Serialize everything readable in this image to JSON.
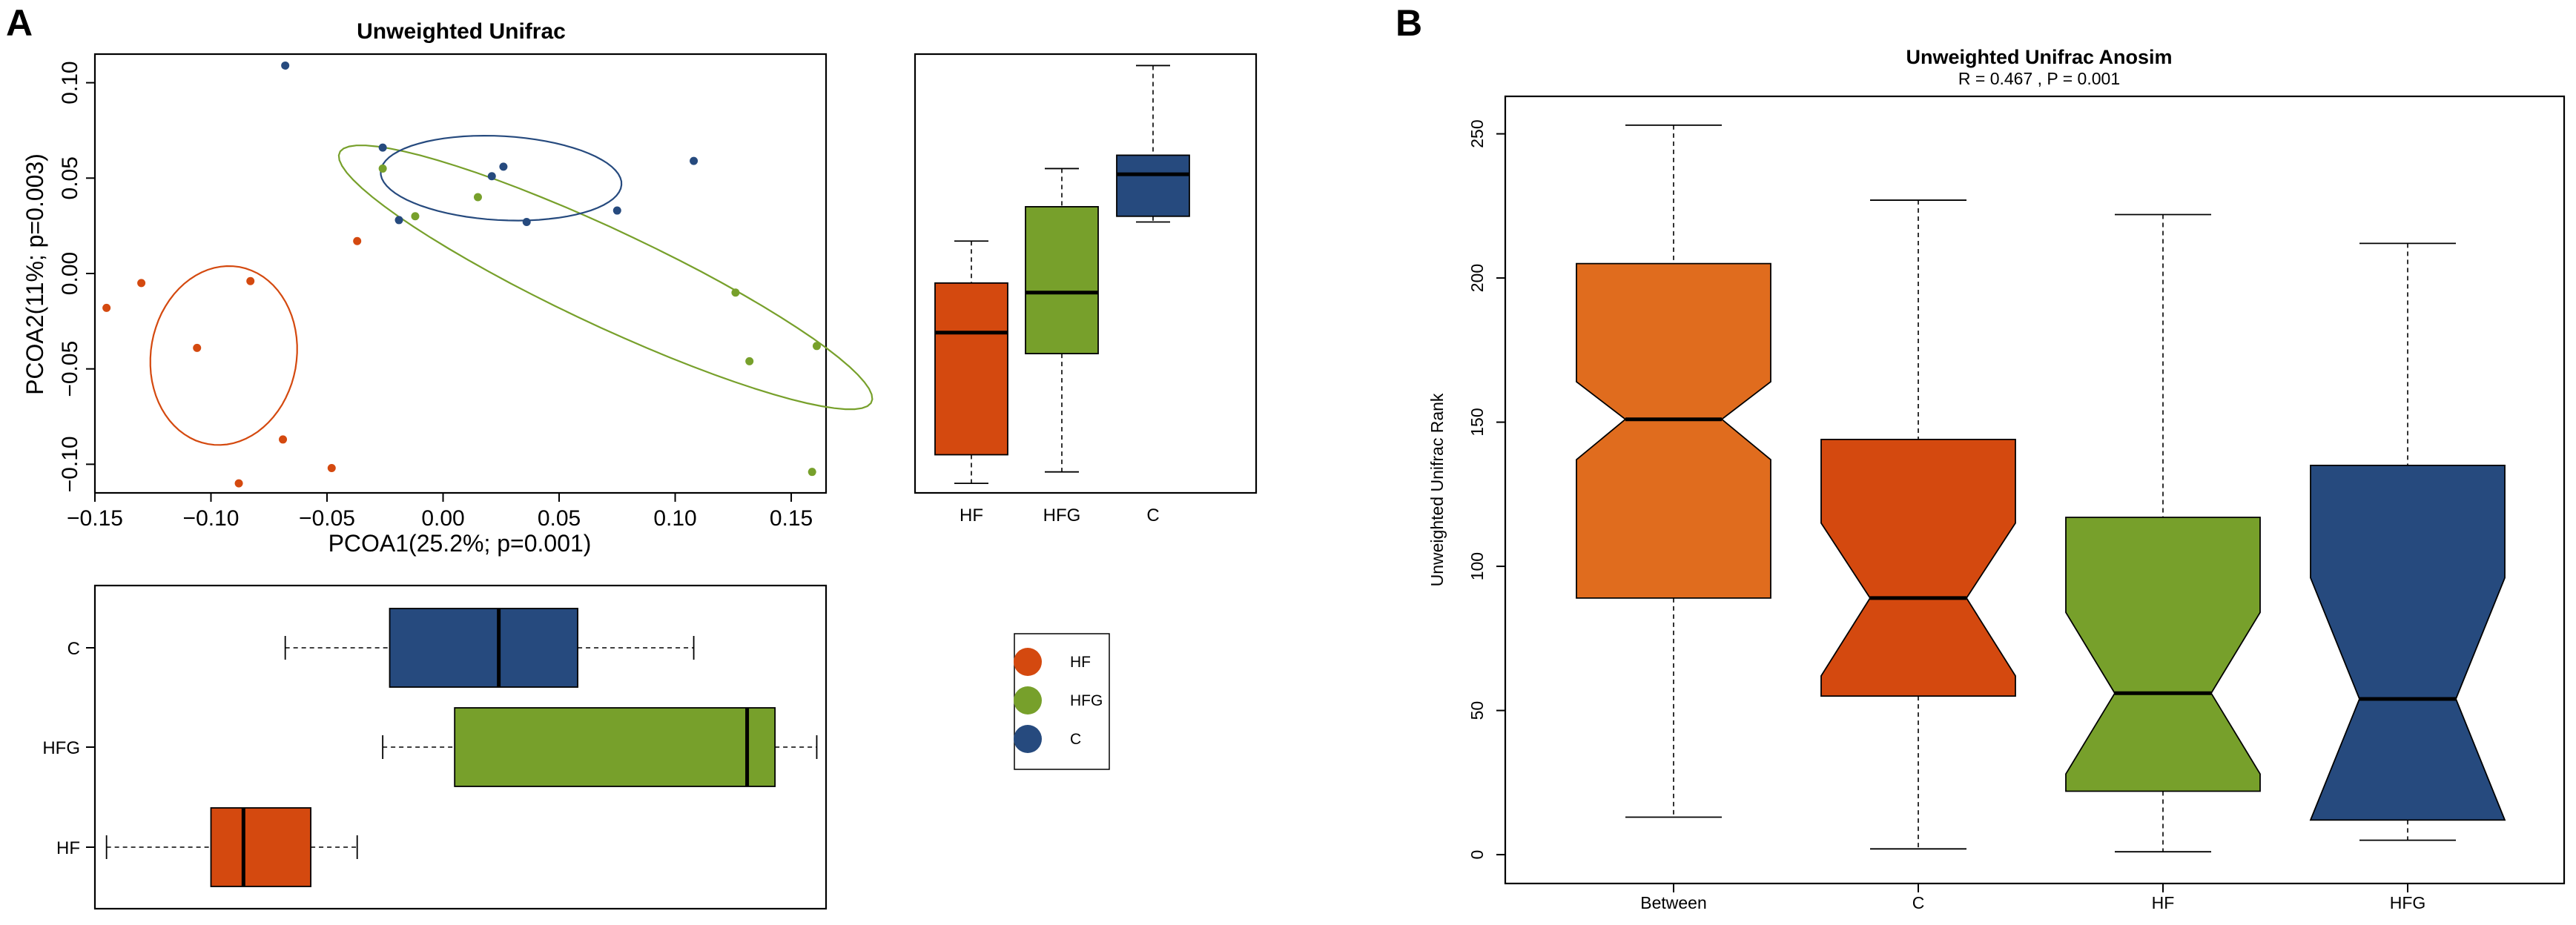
{
  "colors": {
    "HF": "#d4490f",
    "HFG": "#77a02b",
    "C": "#264a7e",
    "Between": "#e06c1e"
  },
  "panels": {
    "A": {
      "label": "A",
      "title": "Unweighted Unifrac",
      "legend": [
        {
          "label": "HF",
          "color_key": "HF"
        },
        {
          "label": "HFG",
          "color_key": "HFG"
        },
        {
          "label": "C",
          "color_key": "C"
        }
      ]
    },
    "B": {
      "label": "B",
      "title": "Unweighted Unifrac Anosim",
      "subtitle": "R = 0.467 ,  P = 0.001"
    }
  },
  "chart_data": [
    {
      "id": "pcoa",
      "type": "scatter",
      "title": "Unweighted Unifrac",
      "xlabel": "PCOA1(25.2%; p=0.001)",
      "ylabel": "PCOA2(11%; p=0.003)",
      "xlim": [
        -0.15,
        0.165
      ],
      "ylim": [
        -0.115,
        0.115
      ],
      "xticks": [
        -0.15,
        -0.1,
        -0.05,
        0.0,
        0.05,
        0.1,
        0.15
      ],
      "xtick_labels": [
        "−0.15",
        "−0.10",
        "−0.05",
        "0.00",
        "0.05",
        "0.10",
        "0.15"
      ],
      "yticks": [
        -0.1,
        -0.05,
        0.0,
        0.05,
        0.1
      ],
      "ytick_labels": [
        "−0.10",
        "−0.05",
        "0.00",
        "0.05",
        "0.10"
      ],
      "series": [
        {
          "name": "HF",
          "color_key": "HF",
          "points": [
            [
              -0.145,
              -0.018
            ],
            [
              -0.13,
              -0.005
            ],
            [
              -0.106,
              -0.039
            ],
            [
              -0.083,
              -0.004
            ],
            [
              -0.069,
              -0.087
            ],
            [
              -0.088,
              -0.11
            ],
            [
              -0.048,
              -0.102
            ],
            [
              -0.037,
              0.017
            ]
          ],
          "ellipse": {
            "cx": -0.0945,
            "cy": -0.043,
            "rx": 0.0315,
            "ry": 0.047,
            "angle_deg": -5
          }
        },
        {
          "name": "HFG",
          "color_key": "HFG",
          "points": [
            [
              -0.026,
              0.055
            ],
            [
              -0.012,
              0.03
            ],
            [
              0.015,
              0.04
            ],
            [
              0.126,
              -0.01
            ],
            [
              0.132,
              -0.046
            ],
            [
              0.161,
              -0.038
            ],
            [
              0.159,
              -0.104
            ]
          ],
          "ellipse": {
            "cx": 0.07,
            "cy": -0.002,
            "rx": 0.132,
            "ry": 0.024,
            "angle_deg": -30
          }
        },
        {
          "name": "C",
          "color_key": "C",
          "points": [
            [
              -0.068,
              0.109
            ],
            [
              -0.026,
              0.066
            ],
            [
              -0.019,
              0.028
            ],
            [
              0.021,
              0.051
            ],
            [
              0.026,
              0.056
            ],
            [
              0.036,
              0.027
            ],
            [
              0.075,
              0.033
            ],
            [
              0.108,
              0.059
            ]
          ],
          "ellipse": {
            "cx": 0.025,
            "cy": 0.05,
            "rx": 0.052,
            "ry": 0.022,
            "angle_deg": -4
          }
        }
      ]
    },
    {
      "id": "pc2-box",
      "type": "box",
      "orientation": "vertical",
      "axis": "PCOA2",
      "categories": [
        "HF",
        "HFG",
        "C"
      ],
      "ylim": [
        -0.115,
        0.115
      ],
      "boxes": [
        {
          "name": "HF",
          "color_key": "HF",
          "min": -0.11,
          "q1": -0.095,
          "median": -0.031,
          "q3": -0.005,
          "max": 0.017
        },
        {
          "name": "HFG",
          "color_key": "HFG",
          "min": -0.104,
          "q1": -0.042,
          "median": -0.01,
          "q3": 0.035,
          "max": 0.055
        },
        {
          "name": "C",
          "color_key": "C",
          "min": 0.027,
          "q1": 0.03,
          "median": 0.052,
          "q3": 0.062,
          "max": 0.109
        }
      ]
    },
    {
      "id": "pc1-box",
      "type": "box",
      "orientation": "horizontal",
      "axis": "PCOA1",
      "categories": [
        "HF",
        "HFG",
        "C"
      ],
      "xlim": [
        -0.15,
        0.165
      ],
      "boxes": [
        {
          "name": "HF",
          "color_key": "HF",
          "min": -0.145,
          "q1": -0.1,
          "median": -0.086,
          "q3": -0.057,
          "max": -0.037
        },
        {
          "name": "HFG",
          "color_key": "HFG",
          "min": -0.026,
          "q1": 0.005,
          "median": 0.131,
          "q3": 0.143,
          "max": 0.161
        },
        {
          "name": "C",
          "color_key": "C",
          "min": -0.068,
          "q1": -0.023,
          "median": 0.024,
          "q3": 0.058,
          "max": 0.108
        }
      ]
    },
    {
      "id": "anosim",
      "type": "box",
      "orientation": "vertical",
      "notched": true,
      "title": "Unweighted Unifrac Anosim",
      "subtitle": "R = 0.467 ,  P = 0.001",
      "ylabel": "Unweighted Unifrac Rank",
      "ylim": [
        -10,
        263
      ],
      "yticks": [
        0,
        50,
        100,
        150,
        200,
        250
      ],
      "ytick_labels": [
        "0",
        "50",
        "100",
        "150",
        "200",
        "250"
      ],
      "categories": [
        "Between",
        "C",
        "HF",
        "HFG"
      ],
      "boxes": [
        {
          "name": "Between",
          "color_key": "Between",
          "min": 13,
          "q1": 89,
          "median": 151,
          "q3": 205,
          "max": 253,
          "notch_low": 137,
          "notch_high": 164
        },
        {
          "name": "C",
          "color_key": "HF",
          "min": 2,
          "q1": 55,
          "median": 89,
          "q3": 144,
          "max": 227,
          "notch_low": 62,
          "notch_high": 115
        },
        {
          "name": "HF",
          "color_key": "HFG",
          "min": 1,
          "q1": 22,
          "median": 56,
          "q3": 117,
          "max": 222,
          "notch_low": 28,
          "notch_high": 84
        },
        {
          "name": "HFG",
          "color_key": "C",
          "min": 5,
          "q1": 12,
          "median": 54,
          "q3": 135,
          "max": 212,
          "notch_low": 12,
          "notch_high": 96
        }
      ]
    }
  ]
}
